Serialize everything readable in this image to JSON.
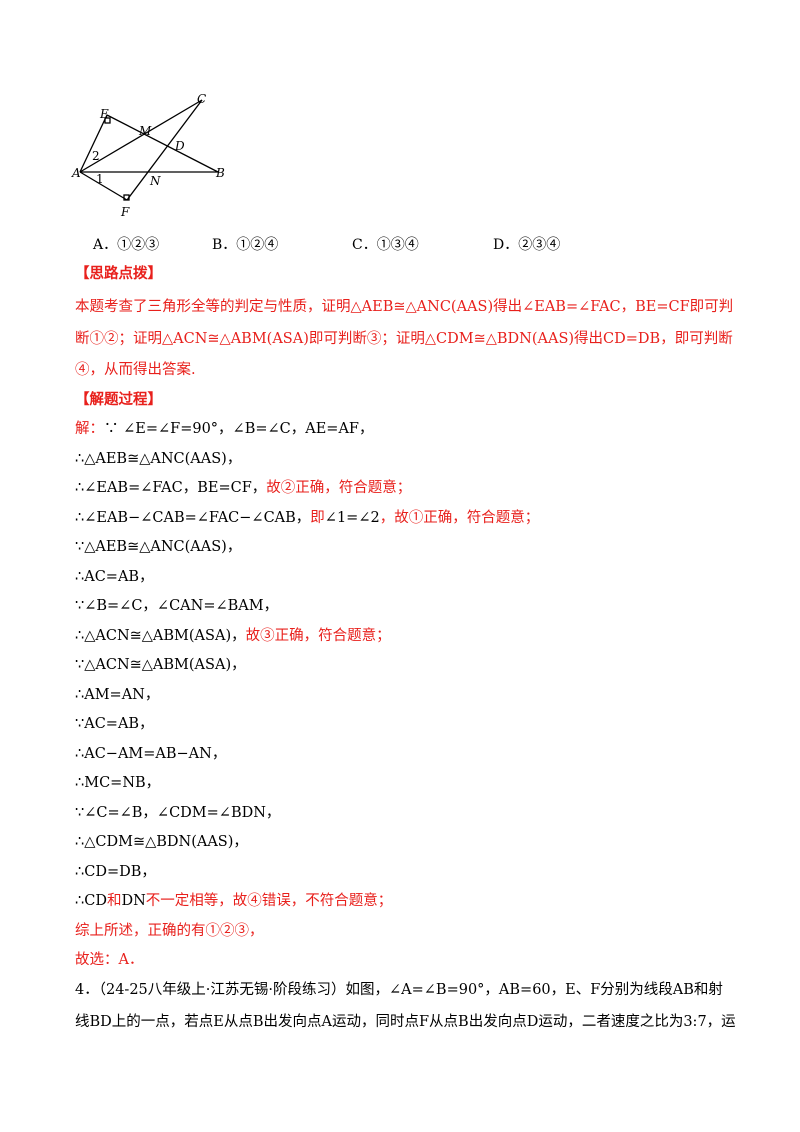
{
  "figure": {
    "labels": [
      "C",
      "E",
      "M",
      "D",
      "A",
      "2",
      "1",
      "N",
      "B",
      "F"
    ]
  },
  "options": [
    "A．①②③",
    "B．①②④",
    "C．①③④",
    "D．②③④"
  ],
  "hint": {
    "heading": "【思路点拨】",
    "lines": [
      "本题考查了三角形全等的判定与性质，证明△AEB≅△ANC(AAS)得出∠EAB=∠FAC，BE=CF即可判",
      "断①②；证明△ACN≅△ABM(ASA)即可判断③；证明△CDM≅△BDN(AAS)得出CD=DB，即可判断",
      "④，从而得出答案."
    ]
  },
  "solution": {
    "heading": "【解题过程】",
    "lines": [
      [
        "解：",
        "∵ ∠E=∠F=90°，∠B=∠C，AE=AF，"
      ],
      [
        "∴△AEB≅△ANC(AAS)，"
      ],
      [
        "∴∠EAB=∠FAC，BE=CF，",
        "故②正确，符合题意；"
      ],
      [
        "∴∠EAB−∠CAB=∠FAC−∠CAB，",
        "即",
        "∠1=∠2",
        "，故①正确，符合题意；"
      ],
      [
        "∵△AEB≅△ANC(AAS)，"
      ],
      [
        "∴AC=AB，"
      ],
      [
        "∵∠B=∠C，∠CAN=∠BAM，"
      ],
      [
        "∴△ACN≅△ABM(ASA)，",
        "故③正确，符合题意；"
      ],
      [
        "∵△ACN≅△ABM(ASA)，"
      ],
      [
        "∴AM=AN，"
      ],
      [
        "∵AC=AB，"
      ],
      [
        "∴AC−AM=AB−AN，"
      ],
      [
        "∴MC=NB，"
      ],
      [
        "∵∠C=∠B，∠CDM=∠BDN，"
      ],
      [
        "∴△CDM≅△BDN(AAS)，"
      ],
      [
        "∴CD=DB，"
      ],
      [
        "∴CD",
        "和",
        "DN",
        "不一定相等，故④错误，不符合题意；"
      ],
      [
        "综上所述，正确的有①②③，"
      ],
      [
        "故选：A．"
      ]
    ]
  },
  "problem": {
    "lines": [
      "4．（24-25八年级上·江苏无锡·阶段练习）如图，∠A=∠B=90°，AB=60，E、F分别为线段AB和射",
      "线BD上的一点，若点E从点B出发向点A运动，同时点F从点B出发向点D运动，二者速度之比为3:7，运"
    ]
  }
}
